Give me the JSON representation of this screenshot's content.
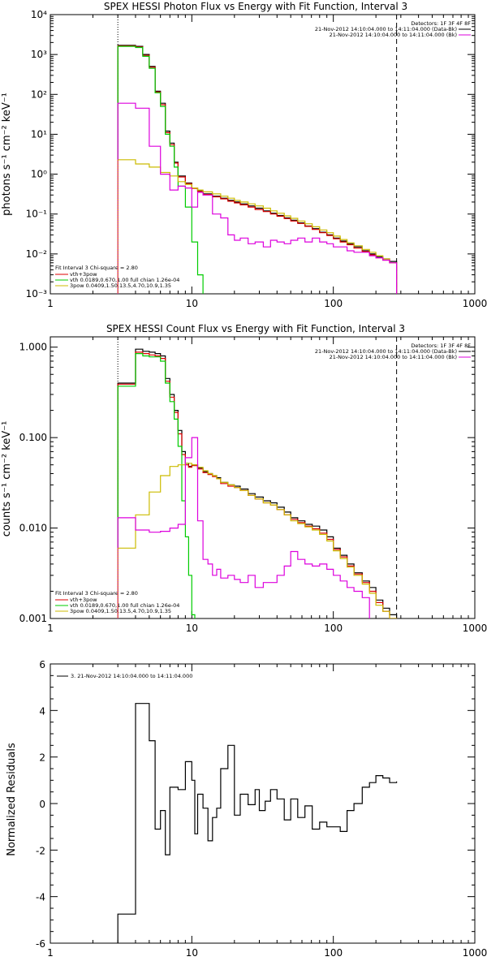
{
  "colors": {
    "black": "#000000",
    "red": "#dd0000",
    "green": "#00cc00",
    "yellow": "#ccbb00",
    "magenta": "#dd00dd",
    "orange": "#ee8800"
  },
  "chart_data": [
    {
      "type": "line",
      "title": "SPEX HESSI Photon Flux vs Energy with Fit Function, Interval 3",
      "ylabel": "photons s⁻¹ cm⁻² keV⁻¹",
      "xlabel": "",
      "xscale": "log",
      "yscale": "log",
      "xlim": [
        1,
        1000
      ],
      "ylim": [
        0.001,
        10000
      ],
      "x_ticks": [
        "1",
        "10",
        "100",
        "1000"
      ],
      "y_ticks": [
        "10⁻³",
        "10⁻²",
        "10⁻¹",
        "10⁰",
        "10¹",
        "10²",
        "10³",
        "10⁴"
      ],
      "vlines": [
        {
          "x": 3,
          "style": "dotted"
        },
        {
          "x": 280,
          "style": "dashed"
        }
      ],
      "info_lines": [
        "Detectors: 1F 3F 4F 8F",
        "21-Nov-2012 14:10:04.000 to 14:11:04.000 (Data-Bk)",
        "21-Nov-2012 14:10:04.000 to 14:11:04.000 (Bk)"
      ],
      "legend_title": "Fit Interval 3   Chi-square = 2.80",
      "legend": [
        {
          "label": "vth+3pow",
          "color": "#dd0000"
        },
        {
          "label": "vth 0.0189,0.670,1.00  full chian 1.26e-04",
          "color": "#00cc00"
        },
        {
          "label": "3pow 0.0409,1.50,13.5,4.70,10.9,1.35",
          "color": "#ccbb00"
        }
      ],
      "series": [
        {
          "id": "data",
          "color": "#000000",
          "edges": [
            3,
            3.5,
            4,
            4.5,
            5,
            5.5,
            6,
            6.5,
            7,
            7.5,
            8,
            9,
            10,
            11,
            12,
            14,
            16,
            18,
            20,
            22,
            25,
            28,
            32,
            36,
            40,
            45,
            50,
            56,
            63,
            71,
            80,
            90,
            100,
            112,
            125,
            140,
            160,
            180,
            200,
            224,
            250,
            280
          ],
          "values": [
            1700,
            1700,
            1600,
            1000,
            500,
            120,
            60,
            12,
            6,
            2,
            0.9,
            0.6,
            0.45,
            0.38,
            0.32,
            0.28,
            0.25,
            0.22,
            0.2,
            0.18,
            0.16,
            0.14,
            0.12,
            0.105,
            0.092,
            0.08,
            0.07,
            0.06,
            0.05,
            0.043,
            0.035,
            0.03,
            0.025,
            0.021,
            0.018,
            0.015,
            0.012,
            0.01,
            0.0085,
            0.0075,
            0.0065
          ]
        },
        {
          "id": "vth+3pow",
          "color": "#dd0000",
          "edges": [
            3,
            3.5,
            4,
            4.5,
            5,
            5.5,
            6,
            6.5,
            7,
            7.5,
            8,
            9,
            10,
            11,
            12,
            14,
            16,
            18,
            20,
            22,
            25,
            28,
            32,
            36,
            40,
            45,
            50,
            56,
            63,
            71,
            80,
            90,
            100,
            112,
            125,
            140,
            160,
            180,
            200,
            224,
            250,
            280
          ],
          "values": [
            1650,
            1650,
            1550,
            950,
            480,
            115,
            55,
            11,
            5.5,
            1.9,
            0.85,
            0.58,
            0.44,
            0.37,
            0.31,
            0.27,
            0.24,
            0.21,
            0.19,
            0.17,
            0.15,
            0.13,
            0.115,
            0.1,
            0.088,
            0.077,
            0.067,
            0.058,
            0.049,
            0.041,
            0.034,
            0.029,
            0.024,
            0.02,
            0.017,
            0.014,
            0.0115,
            0.0095,
            0.008,
            0.007,
            0.006
          ]
        },
        {
          "id": "vth",
          "color": "#00cc00",
          "edges": [
            3,
            3.5,
            4,
            4.5,
            5,
            5.5,
            6,
            6.5,
            7,
            7.5,
            8,
            9,
            10,
            11,
            12
          ],
          "values": [
            1600,
            1600,
            1500,
            900,
            450,
            110,
            50,
            10,
            5,
            1.5,
            0.5,
            0.15,
            0.02,
            0.003
          ]
        },
        {
          "id": "3pow",
          "color": "#ccbb00",
          "edges": [
            3,
            4,
            5,
            6,
            7,
            8,
            9,
            10,
            11,
            12,
            14,
            16,
            18,
            20,
            22,
            25,
            28,
            32,
            36,
            40,
            45,
            50,
            56,
            63,
            71,
            80,
            90,
            100,
            112,
            125,
            140,
            160,
            180,
            200,
            224,
            250,
            280
          ],
          "values": [
            2.3,
            1.8,
            1.5,
            1.1,
            0.9,
            0.65,
            0.55,
            0.45,
            0.4,
            0.36,
            0.32,
            0.28,
            0.25,
            0.22,
            0.2,
            0.18,
            0.16,
            0.14,
            0.12,
            0.105,
            0.09,
            0.078,
            0.067,
            0.057,
            0.048,
            0.04,
            0.034,
            0.028,
            0.023,
            0.019,
            0.016,
            0.013,
            0.011,
            0.009,
            0.0075,
            0.006
          ]
        },
        {
          "id": "background",
          "color": "#dd00dd",
          "edges": [
            3,
            4,
            5,
            6,
            7,
            8,
            9,
            10,
            11,
            12,
            14,
            16,
            18,
            20,
            22,
            25,
            28,
            32,
            36,
            40,
            45,
            50,
            56,
            63,
            71,
            80,
            90,
            100,
            112,
            125,
            140,
            160,
            180,
            200,
            224,
            250,
            280
          ],
          "values": [
            60,
            45,
            5,
            1,
            0.4,
            0.5,
            0.45,
            0.15,
            0.35,
            0.3,
            0.1,
            0.08,
            0.03,
            0.022,
            0.025,
            0.018,
            0.02,
            0.015,
            0.022,
            0.02,
            0.018,
            0.022,
            0.025,
            0.02,
            0.025,
            0.02,
            0.018,
            0.015,
            0.015,
            0.012,
            0.011,
            0.011,
            0.009,
            0.008,
            0.007,
            0.006
          ]
        }
      ]
    },
    {
      "type": "line",
      "title": "SPEX HESSI Count Flux vs Energy with Fit Function, Interval 3",
      "ylabel": "counts s⁻¹ cm⁻² keV⁻¹",
      "xlabel": "",
      "xscale": "log",
      "yscale": "log",
      "xlim": [
        1,
        1000
      ],
      "ylim": [
        0.001,
        1.3
      ],
      "x_ticks": [
        "1",
        "10",
        "100",
        "1000"
      ],
      "y_ticks": [
        "0.001",
        "0.010",
        "0.100",
        "1.000"
      ],
      "vlines": [
        {
          "x": 3,
          "style": "dotted"
        },
        {
          "x": 280,
          "style": "dashed"
        }
      ],
      "info_lines": [
        "Detectors: 1F 3F 4F 8F",
        "21-Nov-2012 14:10:04.000 to 14:11:04.000 (Data-Bk)",
        "21-Nov-2012 14:10:04.000 to 14:11:04.000 (Bk)"
      ],
      "legend_title": "Fit Interval 3   Chi-square = 2.80",
      "legend": [
        {
          "label": "vth+3pow",
          "color": "#dd0000"
        },
        {
          "label": "vth 0.0189,0.670,1.00  full chian 1.26e-04",
          "color": "#00cc00"
        },
        {
          "label": "3pow 0.0409,1.50,13.5,4.70,10.9,1.35",
          "color": "#ccbb00"
        }
      ],
      "series": [
        {
          "id": "data",
          "color": "#000000",
          "edges": [
            3,
            3.5,
            4,
            4.5,
            5,
            5.5,
            6,
            6.5,
            7,
            7.5,
            8,
            8.5,
            9,
            9.5,
            10,
            11,
            12,
            13,
            14,
            15,
            16,
            18,
            20,
            22,
            25,
            28,
            32,
            36,
            40,
            45,
            50,
            56,
            63,
            71,
            80,
            90,
            100,
            112,
            125,
            140,
            160,
            180,
            200,
            224,
            250,
            280
          ],
          "values": [
            0.4,
            0.4,
            0.95,
            0.9,
            0.88,
            0.85,
            0.8,
            0.45,
            0.3,
            0.2,
            0.12,
            0.07,
            0.052,
            0.048,
            0.05,
            0.046,
            0.042,
            0.04,
            0.038,
            0.036,
            0.032,
            0.03,
            0.029,
            0.027,
            0.024,
            0.022,
            0.02,
            0.019,
            0.017,
            0.015,
            0.013,
            0.012,
            0.011,
            0.0105,
            0.0095,
            0.008,
            0.006,
            0.005,
            0.004,
            0.0032,
            0.0026,
            0.0022,
            0.0016,
            0.0013,
            0.0011
          ]
        },
        {
          "id": "vth+3pow",
          "color": "#dd0000",
          "edges": [
            3,
            3.5,
            4,
            4.5,
            5,
            5.5,
            6,
            6.5,
            7,
            7.5,
            8,
            8.5,
            9,
            9.5,
            10,
            11,
            12,
            13,
            14,
            15,
            16,
            18,
            20,
            22,
            25,
            28,
            32,
            36,
            40,
            45,
            50,
            56,
            63,
            71,
            80,
            90,
            100,
            112,
            125,
            140,
            160,
            180,
            200,
            224,
            250,
            280
          ],
          "values": [
            0.39,
            0.39,
            0.88,
            0.85,
            0.82,
            0.8,
            0.75,
            0.42,
            0.28,
            0.19,
            0.11,
            0.065,
            0.05,
            0.047,
            0.049,
            0.045,
            0.041,
            0.039,
            0.037,
            0.035,
            0.031,
            0.029,
            0.028,
            0.026,
            0.023,
            0.021,
            0.019,
            0.018,
            0.016,
            0.014,
            0.0125,
            0.0115,
            0.0105,
            0.0098,
            0.0088,
            0.0075,
            0.0058,
            0.0048,
            0.0038,
            0.0031,
            0.0025,
            0.002,
            0.0015,
            0.0012,
            0.001
          ]
        },
        {
          "id": "vth",
          "color": "#00cc00",
          "edges": [
            3,
            3.5,
            4,
            4.5,
            5,
            5.5,
            6,
            6.5,
            7,
            7.5,
            8,
            8.5,
            9,
            9.5,
            10,
            10.5
          ],
          "values": [
            0.37,
            0.37,
            0.85,
            0.8,
            0.78,
            0.78,
            0.7,
            0.4,
            0.25,
            0.16,
            0.08,
            0.02,
            0.008,
            0.003,
            0.0011
          ]
        },
        {
          "id": "3pow",
          "color": "#ccbb00",
          "edges": [
            3,
            4,
            5,
            6,
            7,
            8,
            9,
            10,
            11,
            12,
            13,
            14,
            15,
            16,
            18,
            20,
            22,
            25,
            28,
            32,
            36,
            40,
            45,
            50,
            56,
            63,
            71,
            80,
            90,
            100,
            112,
            125,
            140,
            160,
            180,
            200,
            224,
            250,
            280
          ],
          "values": [
            0.006,
            0.014,
            0.025,
            0.038,
            0.048,
            0.05,
            0.052,
            0.05,
            0.047,
            0.043,
            0.04,
            0.038,
            0.035,
            0.032,
            0.03,
            0.028,
            0.026,
            0.023,
            0.021,
            0.019,
            0.018,
            0.016,
            0.014,
            0.012,
            0.0112,
            0.0103,
            0.0095,
            0.0085,
            0.0072,
            0.0056,
            0.0046,
            0.0037,
            0.003,
            0.0024,
            0.0019,
            0.0014,
            0.0012,
            0.001
          ]
        },
        {
          "id": "background",
          "color": "#dd00dd",
          "edges": [
            3,
            4,
            5,
            6,
            7,
            8,
            9,
            10,
            11,
            12,
            13,
            14,
            15,
            16,
            18,
            20,
            22,
            25,
            28,
            32,
            36,
            40,
            45,
            50,
            56,
            63,
            71,
            80,
            90,
            100,
            112,
            125,
            140,
            160,
            180
          ],
          "values": [
            0.013,
            0.0095,
            0.009,
            0.0092,
            0.01,
            0.011,
            0.06,
            0.1,
            0.012,
            0.0045,
            0.004,
            0.003,
            0.0035,
            0.0028,
            0.003,
            0.0027,
            0.0025,
            0.003,
            0.0022,
            0.0025,
            0.0025,
            0.003,
            0.0038,
            0.0055,
            0.0045,
            0.004,
            0.0038,
            0.004,
            0.0035,
            0.003,
            0.0026,
            0.0022,
            0.002,
            0.0017
          ]
        }
      ]
    },
    {
      "type": "line",
      "title": "",
      "ylabel": "Normalized Residuals",
      "xlabel": "",
      "xscale": "log",
      "yscale": "linear",
      "xlim": [
        1,
        1000
      ],
      "ylim": [
        -6,
        6
      ],
      "x_ticks": [
        "1",
        "10",
        "100",
        "1000"
      ],
      "y_ticks": [
        "-6",
        "-4",
        "-2",
        "0",
        "2",
        "4",
        "6"
      ],
      "legend": [
        {
          "label": "3. 21-Nov-2012 14:10:04.000 to 14:11:04.000",
          "color": "#000000"
        }
      ],
      "series": [
        {
          "id": "residuals",
          "color": "#000000",
          "edges": [
            3,
            4,
            4.5,
            5,
            5.5,
            6,
            6.5,
            7,
            8,
            9,
            10,
            10.5,
            11,
            12,
            13,
            14,
            15,
            16,
            18,
            20,
            22,
            25,
            28,
            30,
            33,
            36,
            40,
            45,
            50,
            56,
            63,
            71,
            80,
            90,
            100,
            112,
            125,
            140,
            160,
            180,
            200,
            224,
            250,
            280
          ],
          "values": [
            -4.75,
            4.3,
            4.3,
            2.7,
            -1.1,
            -0.3,
            -2.2,
            0.7,
            0.6,
            1.8,
            1.0,
            -1.3,
            0.4,
            -0.2,
            -1.6,
            -0.6,
            -0.2,
            1.5,
            2.5,
            -0.5,
            0.4,
            -0.05,
            0.6,
            -0.3,
            0.1,
            0.6,
            0.2,
            -0.7,
            0.2,
            -0.6,
            -0.1,
            -1.1,
            -0.8,
            -1.0,
            -1.0,
            -1.2,
            -0.3,
            0.0,
            0.7,
            0.9,
            1.2,
            1.1,
            0.9,
            0.95
          ]
        }
      ]
    }
  ]
}
